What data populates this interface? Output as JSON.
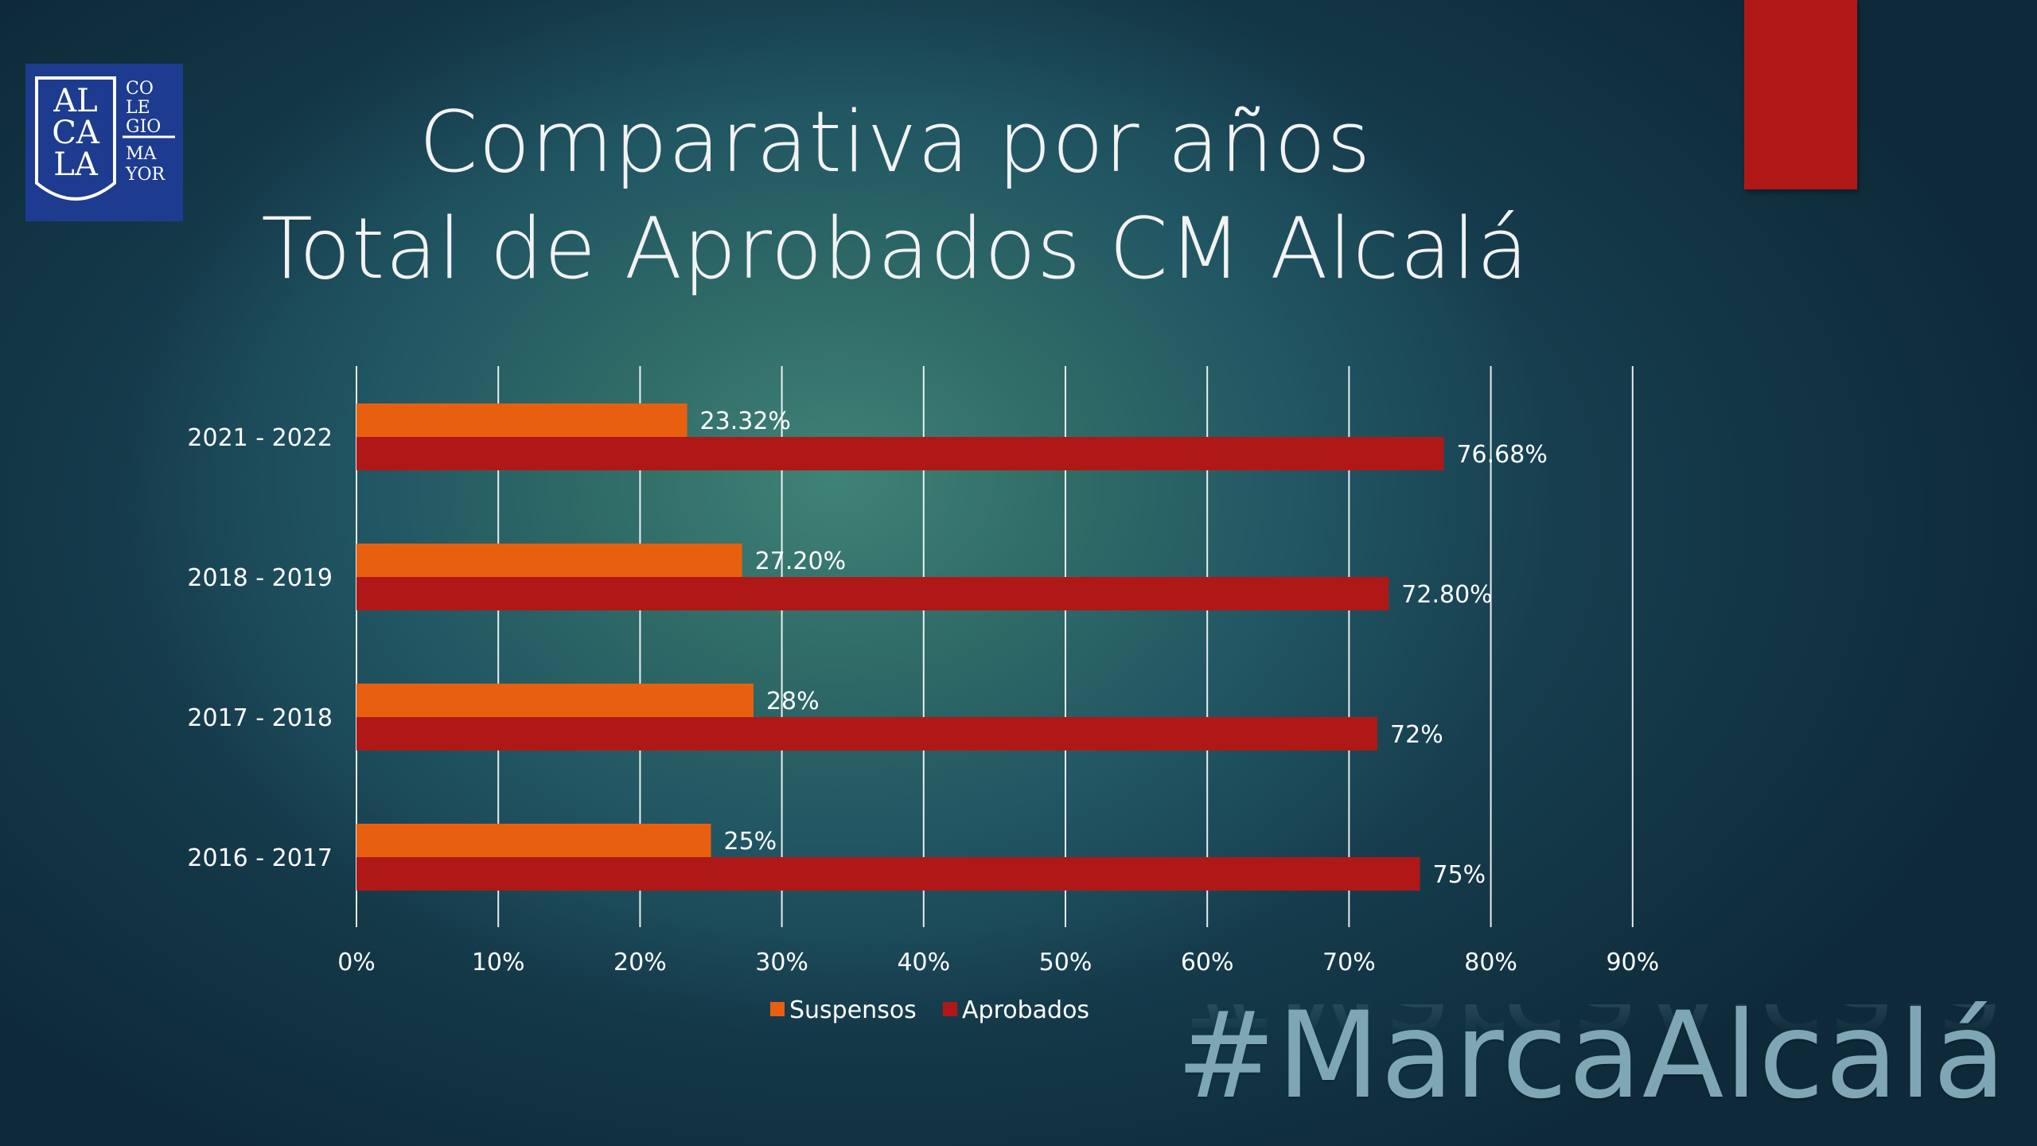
{
  "slide": {
    "title_line1": "Comparativa por años",
    "title_line2": "Total de Aprobados CM Alcalá",
    "hashtag": "#MarcaAlcalá",
    "logo": {
      "icon": "colegio-mayor-alcala-shield-logo",
      "text_left": [
        "AL",
        "CA",
        "LA"
      ],
      "text_right": [
        "CO",
        "LE",
        "GIO",
        "MA",
        "YOR"
      ],
      "color": "#1d3c8f"
    },
    "accent_color": "#b01818"
  },
  "chart_data": {
    "type": "bar",
    "orientation": "horizontal",
    "categories": [
      "2021 - 2022",
      "2018 - 2019",
      "2017 - 2018",
      "2016 - 2017"
    ],
    "series": [
      {
        "name": "Suspensos",
        "color": "#e8600f",
        "values": [
          23.32,
          27.2,
          28,
          25
        ],
        "labels": [
          "23.32%",
          "27.20%",
          "28%",
          "25%"
        ]
      },
      {
        "name": "Aprobados",
        "color": "#b01818",
        "values": [
          76.68,
          72.8,
          72,
          75
        ],
        "labels": [
          "76.68%",
          "72.80%",
          "72%",
          "75%"
        ]
      }
    ],
    "xlim": [
      0,
      90
    ],
    "xticks": [
      0,
      10,
      20,
      30,
      40,
      50,
      60,
      70,
      80,
      90
    ],
    "xtick_labels": [
      "0%",
      "10%",
      "20%",
      "30%",
      "40%",
      "50%",
      "60%",
      "70%",
      "80%",
      "90%"
    ],
    "grid": true,
    "legend": "bottom",
    "title": "",
    "xlabel": "",
    "ylabel": ""
  }
}
